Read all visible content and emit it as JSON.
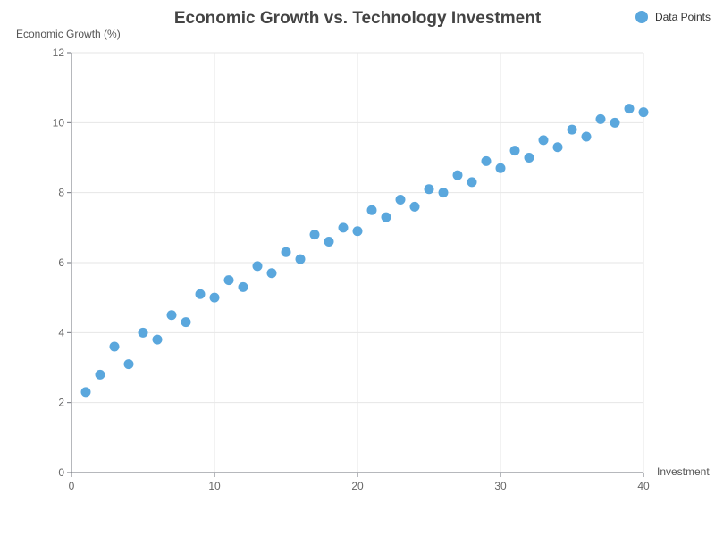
{
  "chart_data": {
    "type": "scatter",
    "title": "Economic Growth vs. Technology Investment",
    "xlabel": "Investment",
    "ylabel": "Economic Growth (%)",
    "xlim": [
      0,
      40
    ],
    "ylim": [
      0,
      12
    ],
    "x_ticks": [
      0,
      10,
      20,
      30,
      40
    ],
    "y_ticks": [
      0,
      2,
      4,
      6,
      8,
      10,
      12
    ],
    "grid": true,
    "legend_position": "top-right",
    "color": "#5aa7dd",
    "series": [
      {
        "name": "Data Points",
        "points": [
          [
            1,
            2.3
          ],
          [
            2,
            2.8
          ],
          [
            3,
            3.6
          ],
          [
            4,
            3.1
          ],
          [
            5,
            4.0
          ],
          [
            6,
            3.8
          ],
          [
            7,
            4.5
          ],
          [
            8,
            4.3
          ],
          [
            9,
            5.1
          ],
          [
            10,
            5.0
          ],
          [
            11,
            5.5
          ],
          [
            12,
            5.3
          ],
          [
            13,
            5.9
          ],
          [
            14,
            5.7
          ],
          [
            15,
            6.3
          ],
          [
            16,
            6.1
          ],
          [
            17,
            6.8
          ],
          [
            18,
            6.6
          ],
          [
            19,
            7.0
          ],
          [
            20,
            6.9
          ],
          [
            21,
            7.5
          ],
          [
            22,
            7.3
          ],
          [
            23,
            7.8
          ],
          [
            24,
            7.6
          ],
          [
            25,
            8.1
          ],
          [
            26,
            8.0
          ],
          [
            27,
            8.5
          ],
          [
            28,
            8.3
          ],
          [
            29,
            8.9
          ],
          [
            30,
            8.7
          ],
          [
            31,
            9.2
          ],
          [
            32,
            9.0
          ],
          [
            33,
            9.5
          ],
          [
            34,
            9.3
          ],
          [
            35,
            9.8
          ],
          [
            36,
            9.6
          ],
          [
            37,
            10.1
          ],
          [
            38,
            10.0
          ],
          [
            39,
            10.4
          ],
          [
            40,
            10.3
          ]
        ]
      }
    ]
  }
}
